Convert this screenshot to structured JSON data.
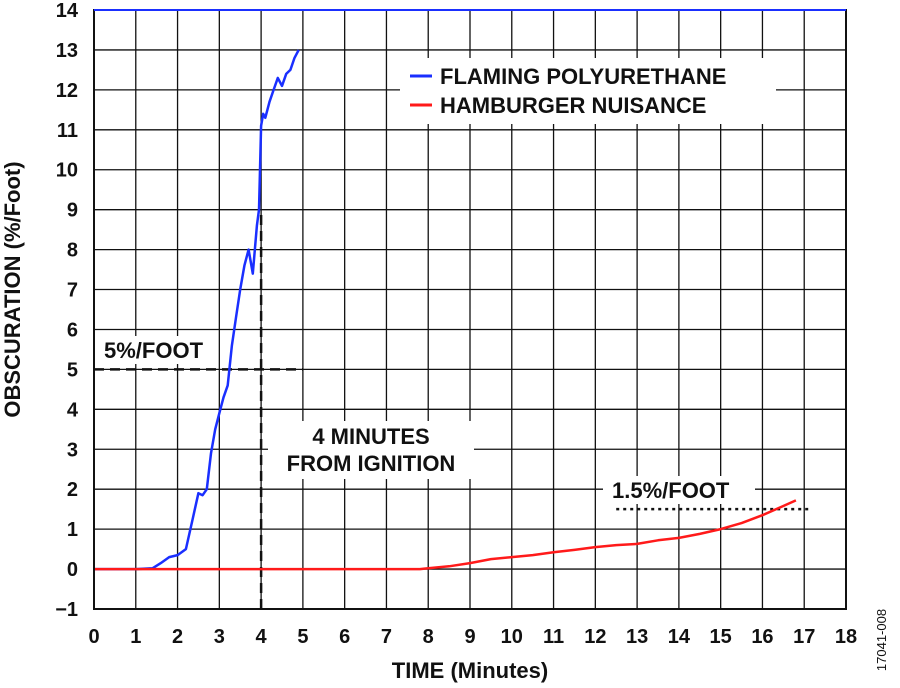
{
  "figure_id": "17041-008",
  "chart_data": {
    "type": "line",
    "xlabel": "TIME (Minutes)",
    "ylabel": "OBSCURATION (%/Foot)",
    "xlim": [
      0,
      18
    ],
    "ylim": [
      -1,
      14
    ],
    "x_ticks": [
      "0",
      "1",
      "2",
      "3",
      "4",
      "5",
      "6",
      "7",
      "8",
      "9",
      "10",
      "11",
      "12",
      "13",
      "14",
      "15",
      "16",
      "17",
      "18"
    ],
    "y_ticks": [
      "−1",
      "0",
      "1",
      "2",
      "3",
      "4",
      "5",
      "6",
      "7",
      "8",
      "9",
      "10",
      "11",
      "12",
      "13",
      "14"
    ],
    "grid": true,
    "legend_position": "top-right",
    "colors": {
      "flaming": "#1a2fff",
      "hamburger": "#ff1a1a",
      "grid": "#111111"
    },
    "series": [
      {
        "name": "FLAMING POLYURETHANE",
        "color": "#1a2fff",
        "x": [
          0,
          1.0,
          1.4,
          1.6,
          1.8,
          2.0,
          2.2,
          2.35,
          2.5,
          2.6,
          2.7,
          2.8,
          2.9,
          3.0,
          3.1,
          3.2,
          3.3,
          3.4,
          3.5,
          3.6,
          3.7,
          3.8,
          3.9,
          3.95,
          4.0,
          4.05,
          4.1,
          4.2,
          4.3,
          4.4,
          4.5,
          4.6,
          4.7,
          4.8,
          4.9
        ],
        "y": [
          0,
          0,
          0.02,
          0.15,
          0.3,
          0.35,
          0.5,
          1.2,
          1.9,
          1.85,
          2.0,
          2.9,
          3.5,
          3.9,
          4.3,
          4.6,
          5.6,
          6.3,
          7.0,
          7.6,
          8.0,
          7.4,
          8.6,
          9.0,
          11.1,
          11.4,
          11.3,
          11.7,
          12.0,
          12.3,
          12.1,
          12.4,
          12.5,
          12.8,
          13.0
        ]
      },
      {
        "name": "HAMBURGER NUISANCE",
        "color": "#ff1a1a",
        "x": [
          0,
          7.8,
          8.0,
          8.5,
          9.0,
          9.5,
          10.0,
          10.5,
          11.0,
          11.5,
          12.0,
          12.5,
          13.0,
          13.5,
          14.0,
          14.5,
          15.0,
          15.5,
          16.0,
          16.5,
          16.8
        ],
        "y": [
          0,
          0,
          0.02,
          0.07,
          0.15,
          0.25,
          0.3,
          0.35,
          0.42,
          0.48,
          0.55,
          0.6,
          0.63,
          0.72,
          0.78,
          0.88,
          1.0,
          1.15,
          1.35,
          1.58,
          1.72
        ]
      }
    ],
    "annotations": [
      {
        "text": "5%/FOOT",
        "ref_line": {
          "type": "horizontal",
          "y": 5,
          "x_from": 0,
          "x_to": 5
        }
      },
      {
        "text_lines": [
          "4 MINUTES",
          "FROM IGNITION"
        ],
        "ref_line": {
          "type": "vertical",
          "x": 4,
          "y_from": -1,
          "y_to": 9
        }
      },
      {
        "text": "1.5%/FOOT",
        "ref_line": {
          "type": "horizontal",
          "y": 1.5,
          "x_from": 12.5,
          "x_to": 17.1
        }
      }
    ]
  }
}
